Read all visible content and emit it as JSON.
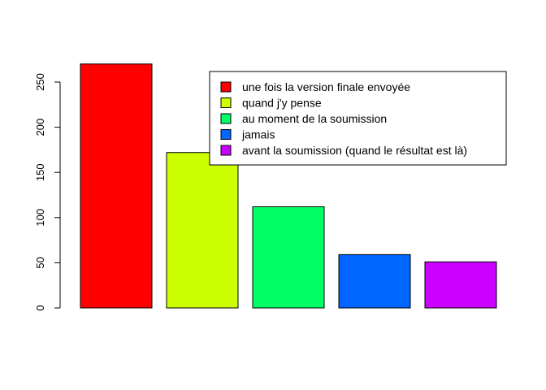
{
  "chart_data": {
    "type": "bar",
    "title": "",
    "xlabel": "",
    "ylabel": "",
    "ylim": [
      0,
      280
    ],
    "yticks": [
      0,
      50,
      100,
      150,
      200,
      250
    ],
    "categories": [
      "une fois la version finale envoyée",
      "quand j'y pense",
      "au moment de la soumission",
      "jamais",
      "avant la soumission (quand le résultat est là)"
    ],
    "values": [
      270,
      172,
      112,
      59,
      51
    ],
    "colors": [
      "#FF0000",
      "#CCFF00",
      "#00FF66",
      "#0066FF",
      "#CC00FF"
    ],
    "grid": false,
    "legend_position": "top-right"
  }
}
